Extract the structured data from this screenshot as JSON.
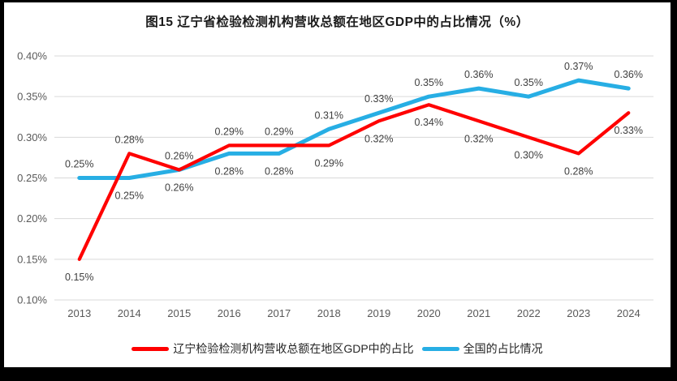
{
  "chart_data": {
    "type": "line",
    "title": "图15 辽宁省检验检测机构营收总额在地区GDP中的占比情况（%）",
    "categories": [
      "2013",
      "2014",
      "2015",
      "2016",
      "2017",
      "2018",
      "2019",
      "2020",
      "2021",
      "2022",
      "2023",
      "2024"
    ],
    "series": [
      {
        "name": "辽宁检验检测机构营收总额在地区GDP中的占比",
        "color": "#FF0000",
        "values": [
          0.15,
          0.28,
          0.26,
          0.29,
          0.29,
          0.29,
          0.32,
          0.34,
          0.32,
          0.3,
          0.28,
          0.33
        ],
        "labels": [
          "0.15%",
          "0.28%",
          "0.26%",
          "0.29%",
          "0.29%",
          "0.29%",
          "0.32%",
          "0.34%",
          "0.32%",
          "0.30%",
          "0.28%",
          "0.33%"
        ]
      },
      {
        "name": "全国的占比情况",
        "color": "#27AEE4",
        "values": [
          0.25,
          0.25,
          0.26,
          0.28,
          0.28,
          0.31,
          0.33,
          0.35,
          0.36,
          0.35,
          0.37,
          0.36
        ],
        "labels": [
          "0.25%",
          "0.25%",
          "0.26%",
          "0.28%",
          "0.28%",
          "0.31%",
          "0.33%",
          "0.35%",
          "0.36%",
          "0.35%",
          "0.37%",
          "0.36%"
        ]
      }
    ],
    "xlabel": "",
    "ylabel": "",
    "ylim": [
      0.1,
      0.4
    ],
    "ytick_labels": [
      "0.40%",
      "0.35%",
      "0.30%",
      "0.25%",
      "0.20%",
      "0.15%",
      "0.10%"
    ],
    "grid": true,
    "legend_position": "bottom",
    "colors": {
      "gridline": "#D9D9D9",
      "axis_text": "#595959",
      "label_text": "#404040",
      "background": "#FFFFFF",
      "frame": "#000000"
    }
  }
}
